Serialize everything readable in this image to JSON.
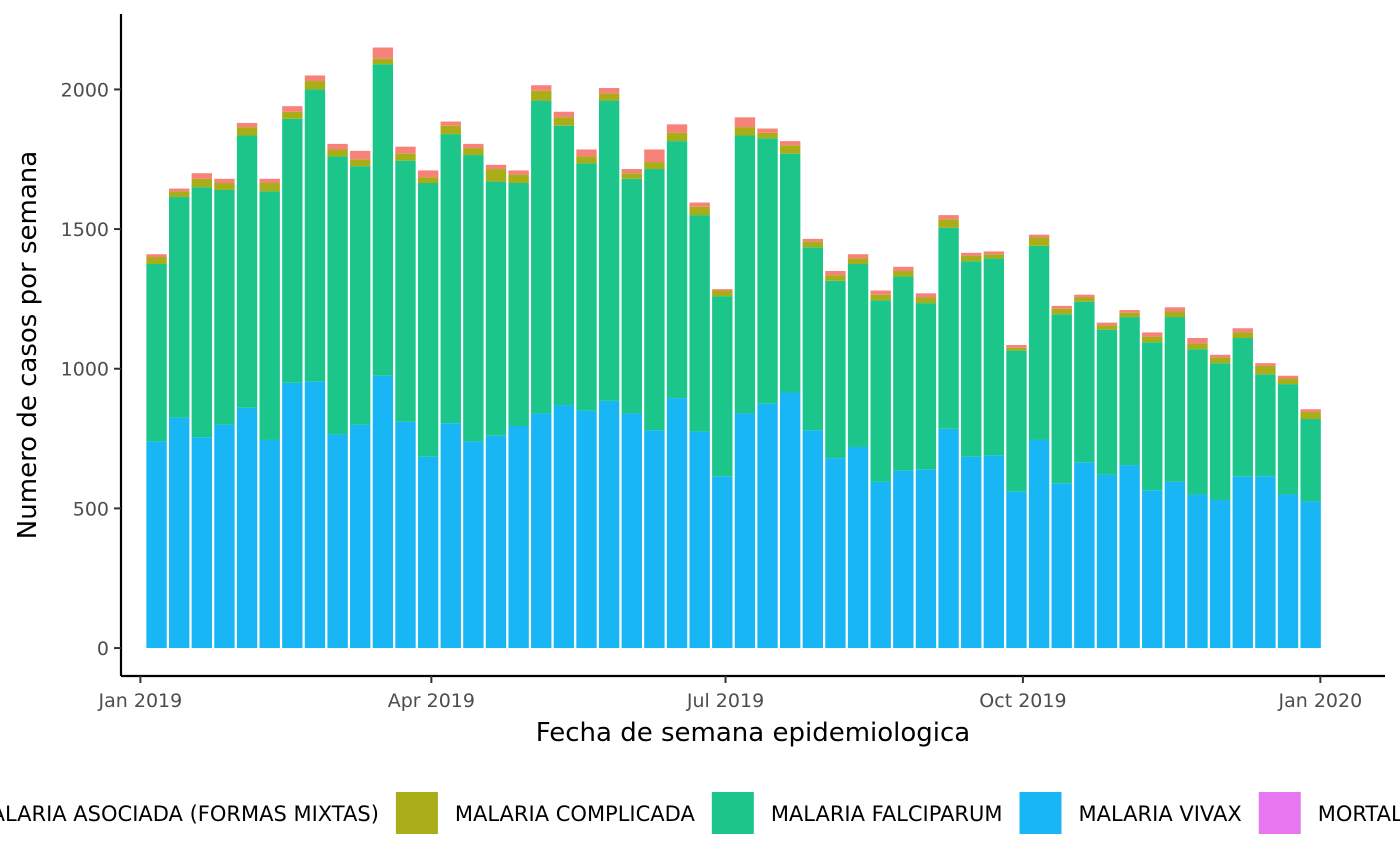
{
  "chart_data": {
    "type": "bar",
    "stacked": true,
    "xlabel": "Fecha de semana epidemiologica",
    "ylabel": "Numero de casos por semana",
    "ylim": [
      -100,
      2270
    ],
    "yticks": [
      0,
      500,
      1000,
      1500,
      2000
    ],
    "xrange": [
      "2018-12-26",
      "2020-01-21"
    ],
    "xticks": [
      {
        "date": "2019-01-01",
        "label": "Jan 2019"
      },
      {
        "date": "2019-04-01",
        "label": "Apr 2019"
      },
      {
        "date": "2019-07-01",
        "label": "Jul 2019"
      },
      {
        "date": "2019-10-01",
        "label": "Oct 2019"
      },
      {
        "date": "2020-01-01",
        "label": "Jan 2020"
      }
    ],
    "grid": false,
    "legend_position": "bottom",
    "categories": [
      "2019-01-06",
      "2019-01-13",
      "2019-01-20",
      "2019-01-27",
      "2019-02-03",
      "2019-02-10",
      "2019-02-17",
      "2019-02-24",
      "2019-03-03",
      "2019-03-10",
      "2019-03-17",
      "2019-03-24",
      "2019-03-31",
      "2019-04-07",
      "2019-04-14",
      "2019-04-21",
      "2019-04-28",
      "2019-05-05",
      "2019-05-12",
      "2019-05-19",
      "2019-05-26",
      "2019-06-02",
      "2019-06-09",
      "2019-06-16",
      "2019-06-23",
      "2019-06-30",
      "2019-07-07",
      "2019-07-14",
      "2019-07-21",
      "2019-07-28",
      "2019-08-04",
      "2019-08-11",
      "2019-08-18",
      "2019-08-25",
      "2019-09-01",
      "2019-09-08",
      "2019-09-15",
      "2019-09-22",
      "2019-09-29",
      "2019-10-06",
      "2019-10-13",
      "2019-10-20",
      "2019-10-27",
      "2019-11-03",
      "2019-11-10",
      "2019-11-17",
      "2019-11-24",
      "2019-12-01",
      "2019-12-08",
      "2019-12-15",
      "2019-12-22",
      "2019-12-29"
    ],
    "series": [
      {
        "name": "MALARIA VIVAX",
        "color": "#19b6f5",
        "values": [
          740,
          825,
          755,
          800,
          860,
          745,
          950,
          955,
          765,
          800,
          975,
          810,
          685,
          805,
          740,
          760,
          795,
          840,
          870,
          850,
          885,
          840,
          780,
          895,
          775,
          615,
          840,
          875,
          915,
          780,
          680,
          720,
          595,
          635,
          640,
          785,
          685,
          690,
          560,
          745,
          590,
          665,
          620,
          655,
          565,
          595,
          550,
          530,
          615,
          615,
          550,
          525
        ]
      },
      {
        "name": "MALARIA FALCIPARUM",
        "color": "#1cc68b",
        "values": [
          635,
          790,
          895,
          840,
          975,
          890,
          945,
          1045,
          995,
          925,
          1115,
          935,
          980,
          1035,
          1025,
          910,
          870,
          1120,
          1000,
          885,
          1075,
          840,
          935,
          920,
          775,
          645,
          995,
          950,
          855,
          655,
          635,
          655,
          650,
          695,
          595,
          720,
          700,
          705,
          505,
          695,
          605,
          575,
          520,
          530,
          530,
          590,
          520,
          490,
          495,
          365,
          395,
          295
        ]
      },
      {
        "name": "MALARIA COMPLICADA",
        "color": "#a9ae18",
        "values": [
          25,
          20,
          30,
          25,
          30,
          30,
          25,
          30,
          25,
          25,
          20,
          25,
          20,
          30,
          25,
          45,
          30,
          35,
          30,
          25,
          25,
          20,
          25,
          30,
          30,
          20,
          30,
          20,
          30,
          20,
          20,
          20,
          20,
          20,
          20,
          30,
          20,
          15,
          10,
          30,
          20,
          15,
          15,
          15,
          20,
          20,
          20,
          20,
          20,
          30,
          20,
          25
        ]
      },
      {
        "name": "MALARIA ASOCIADA (FORMAS MIXTAS)",
        "color": "#f7827a",
        "values": [
          10,
          10,
          20,
          15,
          15,
          15,
          20,
          20,
          20,
          30,
          40,
          25,
          25,
          15,
          15,
          15,
          15,
          20,
          20,
          25,
          20,
          15,
          45,
          30,
          15,
          5,
          35,
          15,
          15,
          10,
          15,
          15,
          15,
          15,
          15,
          15,
          10,
          10,
          10,
          10,
          10,
          10,
          10,
          10,
          15,
          15,
          20,
          10,
          15,
          10,
          10,
          10
        ]
      },
      {
        "name": "MORTALIDAD POR MALARIA",
        "color": "#e776f1",
        "values": [
          0,
          0,
          0,
          0,
          0,
          0,
          0,
          0,
          0,
          0,
          0,
          0,
          0,
          0,
          0,
          0,
          0,
          0,
          0,
          0,
          0,
          0,
          0,
          0,
          0,
          0,
          0,
          0,
          0,
          0,
          0,
          0,
          0,
          0,
          0,
          0,
          0,
          0,
          0,
          0,
          0,
          0,
          0,
          0,
          0,
          0,
          0,
          0,
          0,
          0,
          0,
          0
        ]
      }
    ],
    "legend_entries": [
      {
        "label": "MALARIA ASOCIADA (FORMAS MIXTAS)",
        "color": "#f7827a"
      },
      {
        "label": "MALARIA COMPLICADA",
        "color": "#a9ae18"
      },
      {
        "label": "MALARIA FALCIPARUM",
        "color": "#1cc68b"
      },
      {
        "label": "MALARIA VIVAX",
        "color": "#19b6f5"
      },
      {
        "label": "MORTALIDAD POR MALARIA",
        "color": "#e776f1"
      }
    ]
  }
}
